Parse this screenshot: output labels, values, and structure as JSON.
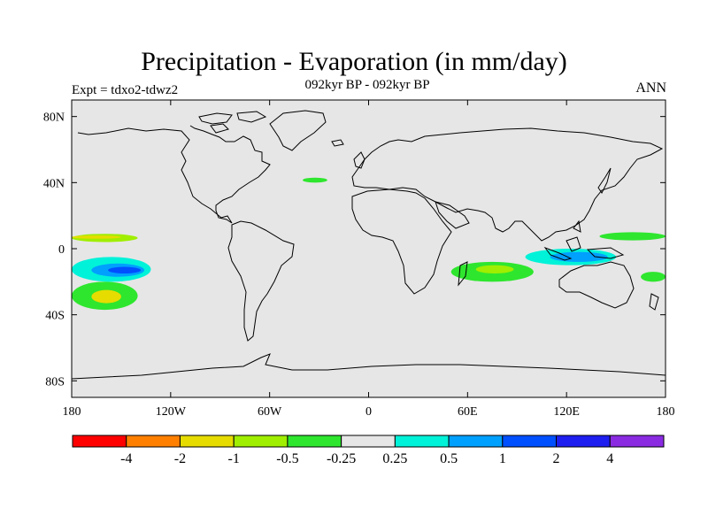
{
  "title": "Precipitation - Evaporation (in mm/day)",
  "subtitle": "092kyr BP - 092kyr BP",
  "left_label": "Expt = tdxo2-tdwz2",
  "right_label": "ANN",
  "map": {
    "lon_range": [
      -180,
      180
    ],
    "lat_range": [
      -90,
      90
    ],
    "ocean_color": "#e6e6e6",
    "x_ticks": [
      {
        "lon": -180,
        "label": "180"
      },
      {
        "lon": -120,
        "label": "120W"
      },
      {
        "lon": -60,
        "label": "60W"
      },
      {
        "lon": 0,
        "label": "0"
      },
      {
        "lon": 60,
        "label": "60E"
      },
      {
        "lon": 120,
        "label": "120E"
      },
      {
        "lon": 180,
        "label": "180"
      }
    ],
    "y_ticks": [
      {
        "lat": 80,
        "label": "80N"
      },
      {
        "lat": 40,
        "label": "40N"
      },
      {
        "lat": 0,
        "label": "0"
      },
      {
        "lat": -40,
        "label": "40S"
      },
      {
        "lat": -80,
        "label": "80S"
      }
    ]
  },
  "colorbar": {
    "colors": [
      "#ff0000",
      "#ff8000",
      "#e6dc00",
      "#a0ee00",
      "#2ee62e",
      "#e6e6e6",
      "#00f2d8",
      "#00a0ff",
      "#0050ff",
      "#1e1ef0",
      "#8a2be2"
    ],
    "labels": [
      "-4",
      "-2",
      "-1",
      "-0.5",
      "-0.25",
      "0.25",
      "0.5",
      "1",
      "2",
      "4"
    ]
  },
  "chart_data": {
    "type": "heatmap",
    "variable": "Precipitation - Evaporation (in mm/day)",
    "levels": [
      -4,
      -2,
      -1,
      -0.5,
      -0.25,
      0.25,
      0.5,
      1,
      2,
      4
    ],
    "regions": [
      {
        "lon": [
          -180,
          -140
        ],
        "lat": [
          4,
          9
        ],
        "value": -0.5
      },
      {
        "lon": [
          -180,
          -150
        ],
        "lat": [
          6,
          8
        ],
        "value": -1
      },
      {
        "lon": [
          -180,
          -132
        ],
        "lat": [
          -20,
          -5
        ],
        "value": 0.5
      },
      {
        "lon": [
          -168,
          -136
        ],
        "lat": [
          -17,
          -9
        ],
        "value": 1
      },
      {
        "lon": [
          -158,
          -138
        ],
        "lat": [
          -15,
          -11
        ],
        "value": 2
      },
      {
        "lon": [
          -180,
          -140
        ],
        "lat": [
          -37,
          -20
        ],
        "value": -0.25
      },
      {
        "lon": [
          -168,
          -150
        ],
        "lat": [
          -33,
          -25
        ],
        "value": -1
      },
      {
        "lon": [
          -60,
          -20
        ],
        "lat": [
          -5,
          5
        ],
        "value": 0.25
      },
      {
        "lon": [
          -40,
          10
        ],
        "lat": [
          70,
          78
        ],
        "value": 0.25
      },
      {
        "lon": [
          -40,
          -25
        ],
        "lat": [
          40,
          43
        ],
        "value": -0.25
      },
      {
        "lon": [
          -20,
          20
        ],
        "lat": [
          3,
          10
        ],
        "value": 0.25
      },
      {
        "lon": [
          20,
          45
        ],
        "lat": [
          -5,
          5
        ],
        "value": 0.25
      },
      {
        "lon": [
          50,
          100
        ],
        "lat": [
          -20,
          -8
        ],
        "value": -0.25
      },
      {
        "lon": [
          65,
          88
        ],
        "lat": [
          -15,
          -10
        ],
        "value": -0.5
      },
      {
        "lon": [
          95,
          150
        ],
        "lat": [
          -10,
          0
        ],
        "value": 0.5
      },
      {
        "lon": [
          110,
          145
        ],
        "lat": [
          -8,
          -2
        ],
        "value": 1
      },
      {
        "lon": [
          140,
          180
        ],
        "lat": [
          20,
          30
        ],
        "value": 0.25
      },
      {
        "lon": [
          140,
          180
        ],
        "lat": [
          5,
          10
        ],
        "value": -0.25
      },
      {
        "lon": [
          165,
          180
        ],
        "lat": [
          -20,
          -14
        ],
        "value": -0.25
      }
    ]
  }
}
